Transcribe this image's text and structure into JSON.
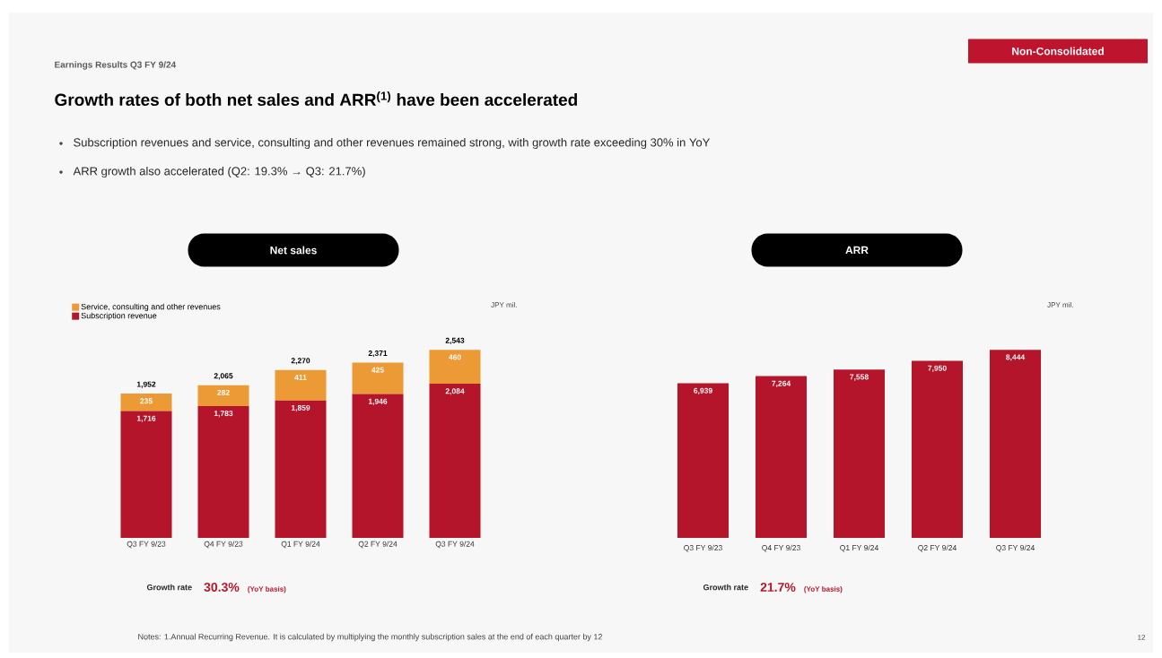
{
  "chart_data": [
    {
      "type": "bar",
      "stacked": true,
      "title": "Net sales",
      "legend": "top left",
      "categories": [
        "Q3 FY 9/23",
        "Q4 FY 9/23",
        "Q1 FY 9/24",
        "Q2 FY 9/24",
        "Q3 FY 9/24"
      ],
      "series": [
        {
          "name": "Subscription revenue",
          "color": "#b5152b",
          "values": [
            1716,
            1783,
            1859,
            1946,
            2084
          ],
          "value_labels": [
            "1,716",
            "1,783",
            "1,859",
            "1,946",
            "2,084"
          ]
        },
        {
          "name": "Service, consulting and other revenues",
          "color": "#ec9a35",
          "values": [
            235,
            282,
            411,
            425,
            460
          ],
          "value_labels": [
            "235",
            "282",
            "411",
            "425",
            "460"
          ]
        }
      ],
      "totals": [
        "1,952",
        "2,065",
        "2,270",
        "2,371",
        "2,543"
      ],
      "annotations": [
        "Earnings Results Q3 FY 9/24",
        "Growth rates of both net sales and ARR$^{(1)}$ have been accelerated",
        "Subscription revenues and service, consulting and other revenues remained strong, with growth rate exceeding 30% in YoY",
        "ARR growth also accelerated (Q2: 19.3% → Q3: 21.7%)",
        "Non-Consolidated",
        "Notes: 1.Annual Recurring Revenue. It is calculated by multiplying the monthly subscription sales at the end of each quarter by 12",
        "12",
        "JPY mil.",
        "Growth rate",
        "30.3%",
        "(YoY basis)"
      ]
    },
    {
      "type": "bar",
      "title": "ARR",
      "categories": [
        "Q3 FY 9/23",
        "Q4 FY 9/23",
        "Q1 FY 9/24",
        "Q2 FY 9/24",
        "Q3 FY 9/24"
      ],
      "series": [
        {
          "color": "#b5152b",
          "values": [
            6939,
            7264,
            7558,
            7950,
            8444
          ],
          "value_labels": [
            "6,939",
            "7,264",
            "7,558",
            "7,950",
            "8,444"
          ]
        }
      ],
      "annotations": [
        "JPY mil.",
        "Growth rate",
        "21.7%",
        "(YoY basis)"
      ]
    }
  ]
}
